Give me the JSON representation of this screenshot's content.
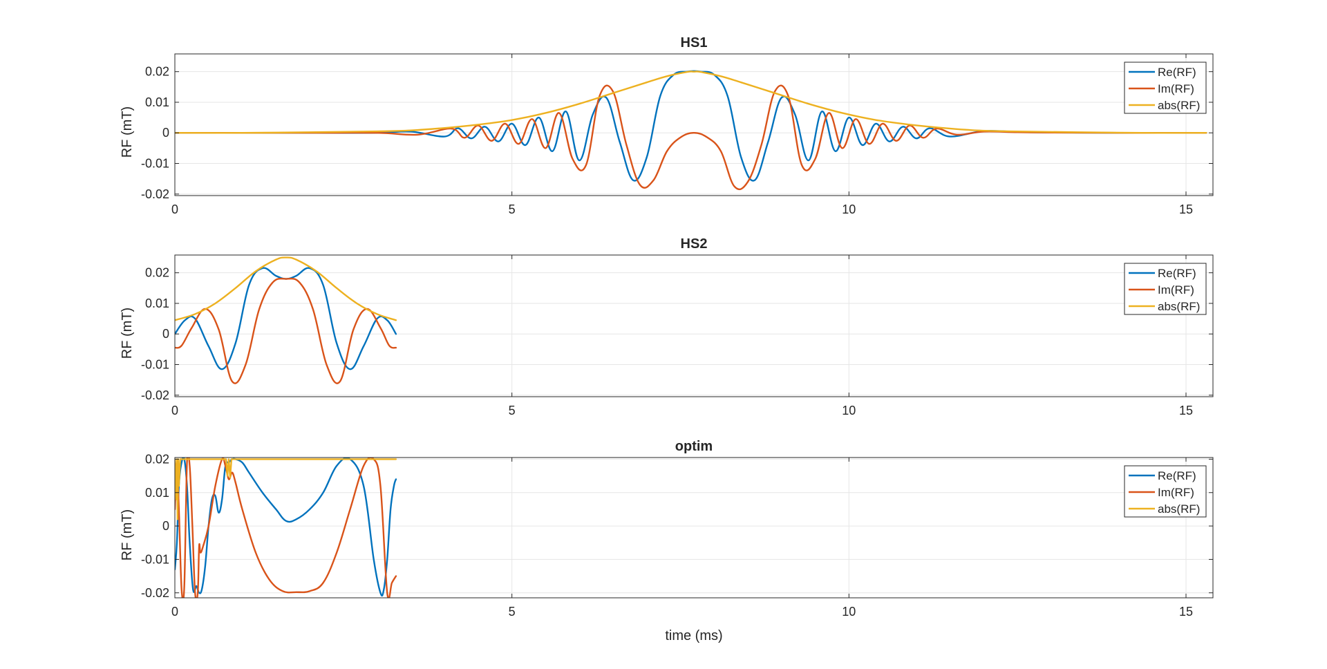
{
  "figure": {
    "xlabel": "time (ms)"
  },
  "chart_data": [
    {
      "type": "line",
      "title": "HS1",
      "ylabel": "RF (mT)",
      "xlabel": "",
      "xlim": [
        0,
        15.4
      ],
      "ylim": [
        -0.0205,
        0.0258
      ],
      "xticks": [
        0,
        5,
        10,
        15
      ],
      "yticks": [
        -0.02,
        -0.01,
        0,
        0.01,
        0.02
      ],
      "ytick_labels": [
        "-0.02",
        "-0.01",
        "0",
        "0.01",
        "0.02"
      ],
      "grid": true,
      "legend_position": "top-right",
      "series": [
        {
          "name": "Re(RF)",
          "color": "#0072BD",
          "x": [
            0,
            1,
            2,
            3,
            3.5,
            4,
            4.2,
            4.4,
            4.6,
            4.8,
            5.0,
            5.2,
            5.4,
            5.6,
            5.8,
            6.0,
            6.2,
            6.4,
            6.6,
            6.8,
            7.0,
            7.2,
            7.4,
            7.6,
            7.7,
            7.8,
            8.0,
            8.2,
            8.4,
            8.6,
            8.8,
            9.0,
            9.2,
            9.4,
            9.6,
            9.8,
            10.0,
            10.2,
            10.4,
            10.6,
            10.8,
            11.0,
            11.2,
            11.5,
            12,
            12.5,
            13,
            14,
            15.3
          ],
          "y": [
            0,
            0,
            0,
            0,
            0.0004,
            -0.0012,
            0.0015,
            -0.0018,
            0.002,
            -0.0028,
            0.003,
            -0.004,
            0.005,
            -0.006,
            0.007,
            -0.009,
            0.006,
            0.0115,
            -0.003,
            -0.0155,
            -0.008,
            0.012,
            0.019,
            0.02,
            0.0202,
            0.02,
            0.019,
            0.012,
            -0.008,
            -0.0155,
            -0.003,
            0.0115,
            0.006,
            -0.009,
            0.007,
            -0.006,
            0.005,
            -0.004,
            0.003,
            -0.0028,
            0.002,
            -0.0018,
            0.0015,
            -0.0012,
            0.0006,
            0.0003,
            0.0001,
            0,
            0
          ]
        },
        {
          "name": "Im(RF)",
          "color": "#D95319",
          "x": [
            0,
            1,
            2,
            3,
            3.6,
            4.1,
            4.3,
            4.5,
            4.7,
            4.9,
            5.1,
            5.3,
            5.5,
            5.7,
            5.9,
            6.1,
            6.3,
            6.5,
            6.7,
            6.9,
            7.1,
            7.3,
            7.5,
            7.7,
            7.9,
            8.1,
            8.3,
            8.5,
            8.7,
            8.9,
            9.1,
            9.3,
            9.5,
            9.7,
            9.9,
            10.1,
            10.3,
            10.5,
            10.7,
            10.9,
            11.1,
            11.3,
            11.6,
            12,
            12.5,
            13,
            14,
            15.3
          ],
          "y": [
            0,
            0,
            0,
            0,
            -0.0006,
            0.0014,
            -0.0016,
            0.0024,
            -0.0026,
            0.003,
            -0.0036,
            0.0045,
            -0.005,
            0.0065,
            -0.0085,
            -0.0105,
            0.012,
            0.0135,
            -0.004,
            -0.017,
            -0.0155,
            -0.006,
            -0.0015,
            0,
            -0.0015,
            -0.006,
            -0.0175,
            -0.016,
            -0.004,
            0.0135,
            0.012,
            -0.0105,
            -0.0085,
            0.0065,
            -0.005,
            0.0045,
            -0.0036,
            0.003,
            -0.0026,
            0.0024,
            -0.0016,
            0.0014,
            -0.0006,
            0.0004,
            0.0002,
            0.0001,
            0,
            0
          ]
        },
        {
          "name": "abs(RF)",
          "color": "#EDB120",
          "x": [
            0,
            1,
            2,
            3,
            3.5,
            4,
            4.5,
            5,
            5.5,
            6,
            6.5,
            7,
            7.3,
            7.6,
            7.7,
            7.8,
            8.1,
            8.4,
            8.9,
            9.4,
            9.9,
            10.4,
            10.9,
            11.4,
            11.9,
            12.4,
            13.4,
            14.4,
            15.3
          ],
          "y": [
            0,
            0,
            0.0002,
            0.0005,
            0.0008,
            0.0016,
            0.0027,
            0.0042,
            0.0065,
            0.0095,
            0.013,
            0.0165,
            0.0185,
            0.0199,
            0.02,
            0.0199,
            0.0185,
            0.0165,
            0.013,
            0.0095,
            0.0065,
            0.0042,
            0.0027,
            0.0016,
            0.0008,
            0.0005,
            0.0002,
            0,
            0
          ]
        }
      ]
    },
    {
      "type": "line",
      "title": "HS2",
      "ylabel": "RF (mT)",
      "xlabel": "",
      "xlim": [
        0,
        15.4
      ],
      "ylim": [
        -0.0205,
        0.0258
      ],
      "xticks": [
        0,
        5,
        10,
        15
      ],
      "yticks": [
        -0.02,
        -0.01,
        0,
        0.01,
        0.02
      ],
      "ytick_labels": [
        "-0.02",
        "-0.01",
        "0",
        "0.01",
        "0.02"
      ],
      "grid": true,
      "legend_position": "top-right",
      "series": [
        {
          "name": "Re(RF)",
          "color": "#0072BD",
          "x": [
            0,
            0.15,
            0.3,
            0.5,
            0.7,
            0.9,
            1.1,
            1.3,
            1.5,
            1.65,
            1.8,
            2.0,
            2.2,
            2.4,
            2.6,
            2.8,
            3.0,
            3.15,
            3.28
          ],
          "y": [
            0,
            0.0045,
            0.005,
            -0.004,
            -0.0115,
            -0.003,
            0.016,
            0.0215,
            0.019,
            0.018,
            0.019,
            0.0215,
            0.016,
            -0.003,
            -0.0115,
            -0.004,
            0.005,
            0.0045,
            0
          ]
        },
        {
          "name": "Im(RF)",
          "color": "#D95319",
          "x": [
            0,
            0.1,
            0.25,
            0.45,
            0.65,
            0.85,
            1.05,
            1.25,
            1.45,
            1.65,
            1.85,
            2.05,
            2.25,
            2.45,
            2.65,
            2.85,
            3.05,
            3.18,
            3.28
          ],
          "y": [
            -0.0045,
            -0.0038,
            0.002,
            0.0082,
            0.0015,
            -0.0155,
            -0.01,
            0.008,
            0.0168,
            0.018,
            0.0168,
            0.008,
            -0.01,
            -0.0155,
            0.0015,
            0.0082,
            0.002,
            -0.0038,
            -0.0045
          ]
        },
        {
          "name": "abs(RF)",
          "color": "#EDB120",
          "x": [
            0,
            0.3,
            0.6,
            0.9,
            1.2,
            1.5,
            1.65,
            1.8,
            2.1,
            2.4,
            2.7,
            3.0,
            3.28
          ],
          "y": [
            0.0045,
            0.0065,
            0.01,
            0.015,
            0.0205,
            0.0243,
            0.025,
            0.0243,
            0.0205,
            0.015,
            0.01,
            0.0065,
            0.0045
          ]
        }
      ]
    },
    {
      "type": "line",
      "title": "optim",
      "ylabel": "RF (mT)",
      "xlabel": "time (ms)",
      "xlim": [
        0,
        15.4
      ],
      "ylim": [
        -0.0215,
        0.0205
      ],
      "xticks": [
        0,
        5,
        10,
        15
      ],
      "yticks": [
        -0.02,
        -0.01,
        0,
        0.01,
        0.02
      ],
      "ytick_labels": [
        "-0.02",
        "-0.01",
        "0",
        "0.01",
        "0.02"
      ],
      "grid": true,
      "legend_position": "top-right",
      "series": [
        {
          "name": "Re(RF)",
          "color": "#0072BD",
          "x": [
            0,
            0.03,
            0.06,
            0.1,
            0.14,
            0.18,
            0.22,
            0.27,
            0.32,
            0.36,
            0.4,
            0.45,
            0.5,
            0.55,
            0.6,
            0.65,
            0.7,
            0.75,
            0.8,
            0.85,
            0.9,
            1.0,
            1.1,
            1.3,
            1.5,
            1.65,
            1.8,
            2.0,
            2.2,
            2.4,
            2.6,
            2.8,
            2.95,
            3.05,
            3.1,
            3.15,
            3.2,
            3.25,
            3.28
          ],
          "y": [
            -0.013,
            -0.005,
            0.012,
            0.019,
            0.02,
            0.012,
            -0.005,
            -0.019,
            -0.018,
            -0.02,
            -0.019,
            -0.012,
            0,
            0.008,
            0.009,
            0.004,
            0.008,
            0.018,
            0.019,
            0.02,
            0.02,
            0.019,
            0.016,
            0.01,
            0.005,
            0.0015,
            0.002,
            0.005,
            0.01,
            0.018,
            0.02,
            0.012,
            -0.01,
            -0.02,
            -0.019,
            -0.01,
            0.005,
            0.012,
            0.014
          ]
        },
        {
          "name": "Im(RF)",
          "color": "#D95319",
          "x": [
            0,
            0.03,
            0.06,
            0.1,
            0.14,
            0.18,
            0.22,
            0.26,
            0.3,
            0.34,
            0.36,
            0.38,
            0.42,
            0.5,
            0.6,
            0.7,
            0.75,
            0.8,
            0.85,
            0.9,
            1.0,
            1.2,
            1.4,
            1.6,
            1.8,
            2.0,
            2.2,
            2.4,
            2.6,
            2.8,
            2.95,
            3.05,
            3.15,
            3.22,
            3.28
          ],
          "y": [
            0.005,
            0.019,
            0.005,
            -0.019,
            -0.018,
            0.019,
            0.018,
            0.0,
            -0.02,
            -0.02,
            -0.006,
            -0.008,
            -0.006,
            0.0,
            0.012,
            0.02,
            0.018,
            0.014,
            0.016,
            0.013,
            0.005,
            -0.008,
            -0.016,
            -0.0195,
            -0.0198,
            -0.0195,
            -0.017,
            -0.008,
            0.005,
            0.018,
            0.02,
            0.012,
            -0.02,
            -0.017,
            -0.015
          ]
        },
        {
          "name": "abs(RF)",
          "color": "#EDB120",
          "x": [
            0,
            0.02,
            0.03,
            0.04,
            0.05,
            0.06,
            0.08,
            0.1,
            0.5,
            0.76,
            0.78,
            0.8,
            0.82,
            0.84,
            1.0,
            2.0,
            3.28
          ],
          "y": [
            0.02,
            0.008,
            0.02,
            0.002,
            0.02,
            0.012,
            0.02,
            0.02,
            0.02,
            0.02,
            0.015,
            0.02,
            0.0145,
            0.02,
            0.02,
            0.02,
            0.02
          ]
        }
      ]
    }
  ]
}
